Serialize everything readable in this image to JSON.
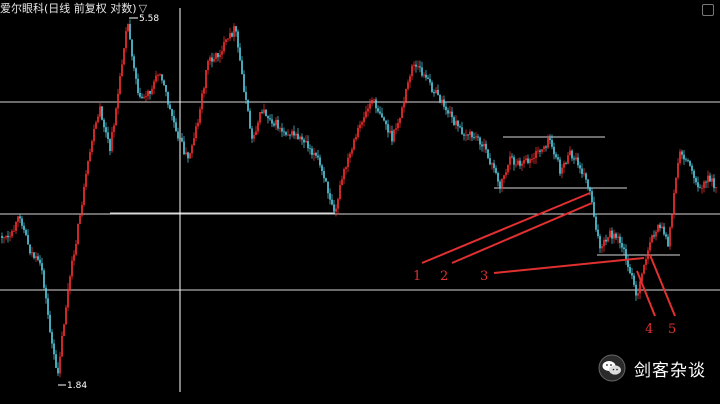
{
  "header": {
    "title": "爱尔眼科(日线 前复权 对数)",
    "arrow": "▽"
  },
  "watermark": {
    "text": "剑客杂谈",
    "icon": "wechat-icon"
  },
  "colors": {
    "background": "#000000",
    "up": "#ff3232",
    "down": "#5ad2e6",
    "level_line": "#d8d8d8",
    "annotation": "#e03030",
    "crosshair": "#ffffff"
  },
  "chart_data": {
    "type": "candlestick",
    "scale": "log",
    "price_range": [
      1.84,
      5.58
    ],
    "max_label": "5.58",
    "min_label": "1.84",
    "horizontal_levels": [
      {
        "name": "upper-level",
        "y_frac": 0.255,
        "full_width": true
      },
      {
        "name": "middle-level",
        "y_frac": 0.535,
        "full_width": true
      },
      {
        "name": "lower-level",
        "y_frac": 0.725,
        "full_width": true
      }
    ],
    "annotations": [
      {
        "label": "1"
      },
      {
        "label": "2"
      },
      {
        "label": "3"
      },
      {
        "label": "4"
      },
      {
        "label": "5"
      }
    ]
  }
}
